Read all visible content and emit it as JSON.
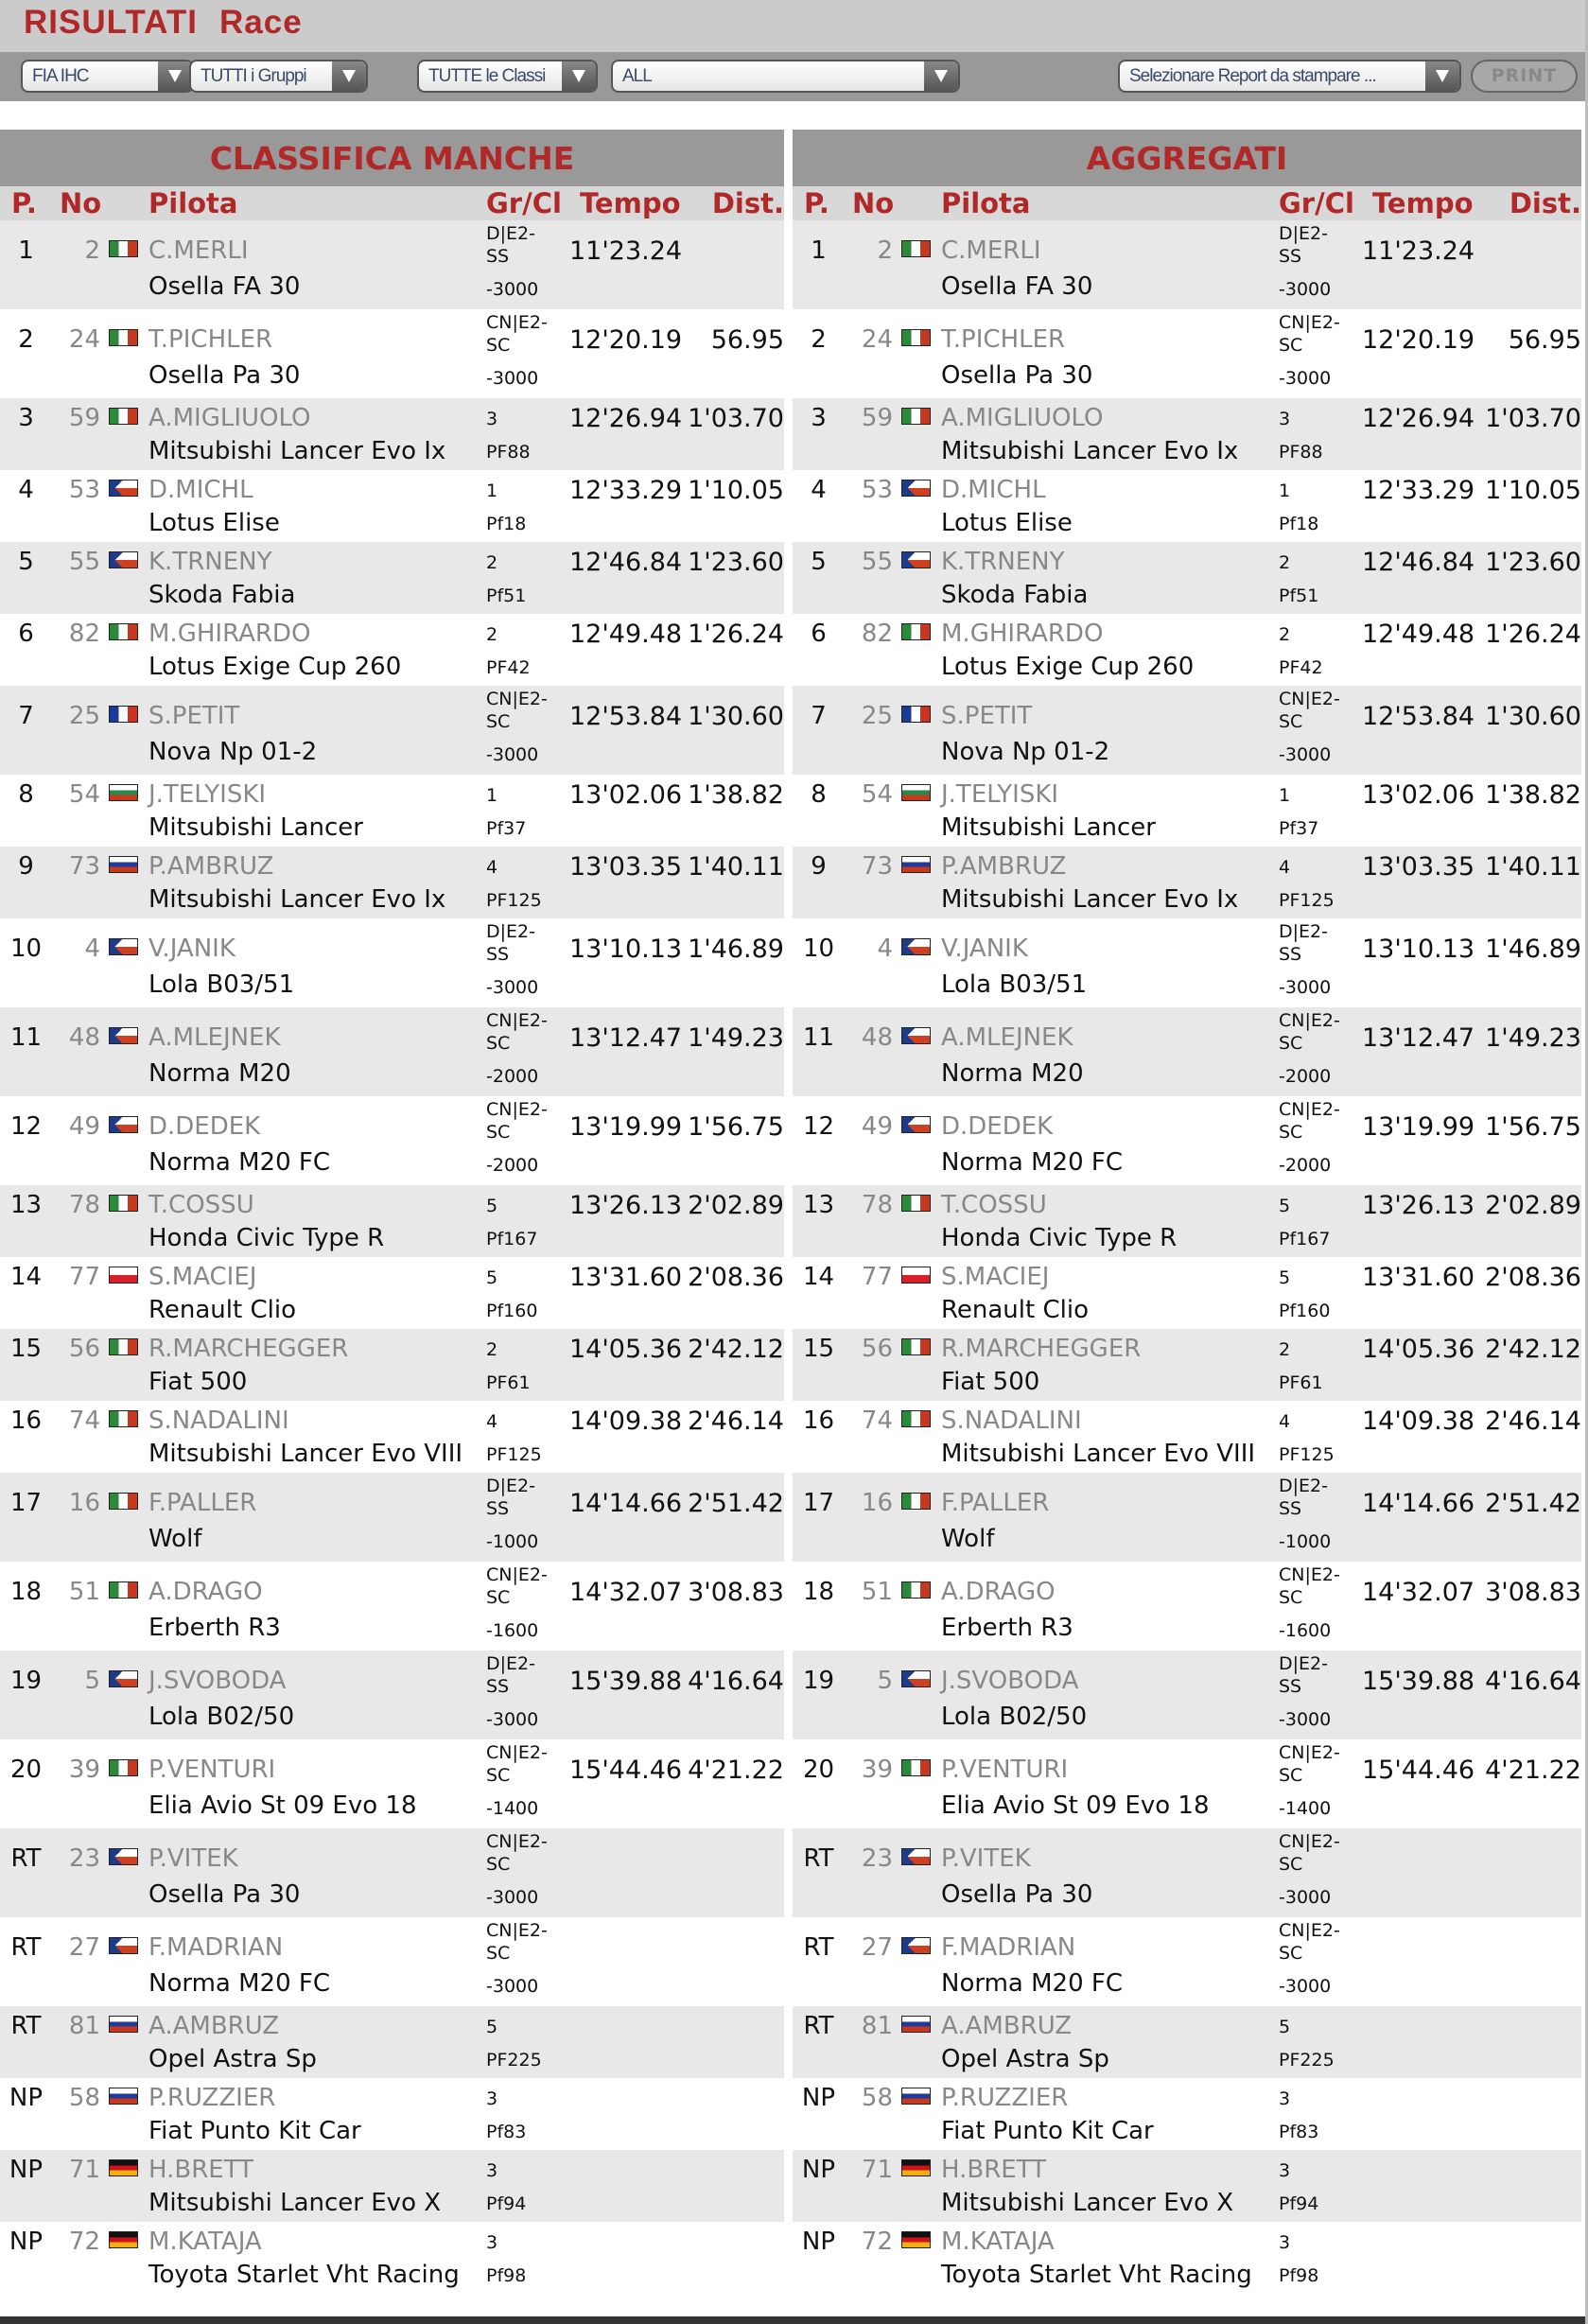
{
  "header": {
    "title": "RISULTATI",
    "subtitle": "Race"
  },
  "toolbar": {
    "championship": "FIA IHC",
    "groups": "TUTTI i Gruppi",
    "classes": "TUTTE le Classi",
    "filter": "ALL",
    "report": "Selezionare Report da stampare ...",
    "print": "PRINT"
  },
  "columns": {
    "pos": "P.",
    "no": "No",
    "pilot": "Pilota",
    "grcl": "Gr/Cl",
    "time": "Tempo",
    "dist": "Dist."
  },
  "panels": [
    {
      "title": "CLASSIFICA MANCHE"
    },
    {
      "title": "AGGREGATI"
    }
  ],
  "colors": {
    "accent": "#b02828",
    "row_alt": "#e8e8e8",
    "header_bg": "#999999"
  },
  "rows": [
    {
      "pos": "1",
      "no": "2",
      "flag": "it",
      "pilot": "C.MERLI",
      "car": "Osella FA 30",
      "gr": "D|E2-SS",
      "cl": "-3000",
      "time": "11'23.24",
      "dist": ""
    },
    {
      "pos": "2",
      "no": "24",
      "flag": "it",
      "pilot": "T.PICHLER",
      "car": "Osella Pa 30",
      "gr": "CN|E2-SC",
      "cl": "-3000",
      "time": "12'20.19",
      "dist": "56.95"
    },
    {
      "pos": "3",
      "no": "59",
      "flag": "it",
      "pilot": "A.MIGLIUOLO",
      "car": "Mitsubishi Lancer Evo Ix",
      "gr": "3",
      "cl": "PF88",
      "time": "12'26.94",
      "dist": "1'03.70"
    },
    {
      "pos": "4",
      "no": "53",
      "flag": "cz",
      "pilot": "D.MICHL",
      "car": "Lotus Elise",
      "gr": "1",
      "cl": "Pf18",
      "time": "12'33.29",
      "dist": "1'10.05"
    },
    {
      "pos": "5",
      "no": "55",
      "flag": "cz",
      "pilot": "K.TRNENY",
      "car": "Skoda Fabia",
      "gr": "2",
      "cl": "Pf51",
      "time": "12'46.84",
      "dist": "1'23.60"
    },
    {
      "pos": "6",
      "no": "82",
      "flag": "it",
      "pilot": "M.GHIRARDO",
      "car": "Lotus Exige Cup 260",
      "gr": "2",
      "cl": "PF42",
      "time": "12'49.48",
      "dist": "1'26.24"
    },
    {
      "pos": "7",
      "no": "25",
      "flag": "fr",
      "pilot": "S.PETIT",
      "car": "Nova Np 01-2",
      "gr": "CN|E2-SC",
      "cl": "-3000",
      "time": "12'53.84",
      "dist": "1'30.60"
    },
    {
      "pos": "8",
      "no": "54",
      "flag": "bg",
      "pilot": "J.TELYISKI",
      "car": "Mitsubishi Lancer",
      "gr": "1",
      "cl": "Pf37",
      "time": "13'02.06",
      "dist": "1'38.82"
    },
    {
      "pos": "9",
      "no": "73",
      "flag": "si",
      "pilot": "P.AMBRUZ",
      "car": "Mitsubishi Lancer Evo Ix",
      "gr": "4",
      "cl": "PF125",
      "time": "13'03.35",
      "dist": "1'40.11"
    },
    {
      "pos": "10",
      "no": "4",
      "flag": "cz",
      "pilot": "V.JANIK",
      "car": "Lola B03/51",
      "gr": "D|E2-SS",
      "cl": "-3000",
      "time": "13'10.13",
      "dist": "1'46.89"
    },
    {
      "pos": "11",
      "no": "48",
      "flag": "cz",
      "pilot": "A.MLEJNEK",
      "car": "Norma M20",
      "gr": "CN|E2-SC",
      "cl": "-2000",
      "time": "13'12.47",
      "dist": "1'49.23"
    },
    {
      "pos": "12",
      "no": "49",
      "flag": "cz",
      "pilot": "D.DEDEK",
      "car": "Norma M20 FC",
      "gr": "CN|E2-SC",
      "cl": "-2000",
      "time": "13'19.99",
      "dist": "1'56.75"
    },
    {
      "pos": "13",
      "no": "78",
      "flag": "it",
      "pilot": "T.COSSU",
      "car": "Honda Civic Type R",
      "gr": "5",
      "cl": "Pf167",
      "time": "13'26.13",
      "dist": "2'02.89"
    },
    {
      "pos": "14",
      "no": "77",
      "flag": "pl",
      "pilot": "S.MACIEJ",
      "car": "Renault Clio",
      "gr": "5",
      "cl": "Pf160",
      "time": "13'31.60",
      "dist": "2'08.36"
    },
    {
      "pos": "15",
      "no": "56",
      "flag": "it",
      "pilot": "R.MARCHEGGER",
      "car": "Fiat 500",
      "gr": "2",
      "cl": "PF61",
      "time": "14'05.36",
      "dist": "2'42.12"
    },
    {
      "pos": "16",
      "no": "74",
      "flag": "it",
      "pilot": "S.NADALINI",
      "car": "Mitsubishi Lancer Evo VIII",
      "gr": "4",
      "cl": "PF125",
      "time": "14'09.38",
      "dist": "2'46.14"
    },
    {
      "pos": "17",
      "no": "16",
      "flag": "it",
      "pilot": "F.PALLER",
      "car": "Wolf",
      "gr": "D|E2-SS",
      "cl": "-1000",
      "time": "14'14.66",
      "dist": "2'51.42"
    },
    {
      "pos": "18",
      "no": "51",
      "flag": "it",
      "pilot": "A.DRAGO",
      "car": "Erberth R3",
      "gr": "CN|E2-SC",
      "cl": "-1600",
      "time": "14'32.07",
      "dist": "3'08.83"
    },
    {
      "pos": "19",
      "no": "5",
      "flag": "cz",
      "pilot": "J.SVOBODA",
      "car": "Lola B02/50",
      "gr": "D|E2-SS",
      "cl": "-3000",
      "time": "15'39.88",
      "dist": "4'16.64"
    },
    {
      "pos": "20",
      "no": "39",
      "flag": "it",
      "pilot": "P.VENTURI",
      "car": "Elia Avio St 09 Evo 18",
      "gr": "CN|E2-SC",
      "cl": "-1400",
      "time": "15'44.46",
      "dist": "4'21.22"
    },
    {
      "pos": "RT",
      "no": "23",
      "flag": "cz",
      "pilot": "P.VITEK",
      "car": "Osella Pa 30",
      "gr": "CN|E2-SC",
      "cl": "-3000",
      "time": "",
      "dist": ""
    },
    {
      "pos": "RT",
      "no": "27",
      "flag": "cz",
      "pilot": "F.MADRIAN",
      "car": "Norma M20 FC",
      "gr": "CN|E2-SC",
      "cl": "-3000",
      "time": "",
      "dist": ""
    },
    {
      "pos": "RT",
      "no": "81",
      "flag": "si",
      "pilot": "A.AMBRUZ",
      "car": "Opel Astra Sp",
      "gr": "5",
      "cl": "PF225",
      "time": "",
      "dist": ""
    },
    {
      "pos": "NP",
      "no": "58",
      "flag": "si",
      "pilot": "P.RUZZIER",
      "car": "Fiat Punto Kit Car",
      "gr": "3",
      "cl": "Pf83",
      "time": "",
      "dist": ""
    },
    {
      "pos": "NP",
      "no": "71",
      "flag": "de",
      "pilot": "H.BRETT",
      "car": "Mitsubishi Lancer Evo X",
      "gr": "3",
      "cl": "Pf94",
      "time": "",
      "dist": ""
    },
    {
      "pos": "NP",
      "no": "72",
      "flag": "de",
      "pilot": "M.KATAJA",
      "car": "Toyota Starlet Vht Racing",
      "gr": "3",
      "cl": "Pf98",
      "time": "",
      "dist": ""
    }
  ]
}
